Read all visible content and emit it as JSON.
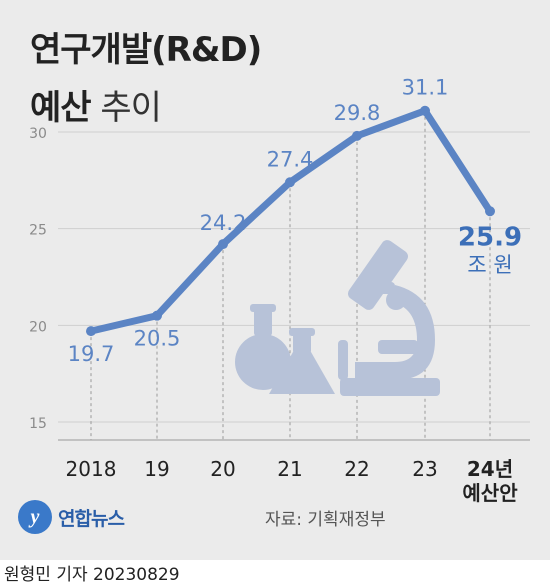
{
  "title_line1": "연구개발(R&D)",
  "title_line2_bold": "예산",
  "title_line2_light": "추이",
  "chart_data": {
    "type": "line",
    "categories": [
      "2018",
      "19",
      "20",
      "21",
      "22",
      "23",
      "24년\n예산안"
    ],
    "values": [
      19.7,
      20.5,
      24.2,
      27.4,
      29.8,
      31.1,
      25.9
    ],
    "value_labels": [
      "19.7",
      "20.5",
      "24.2",
      "27.4",
      "29.8",
      "31.1",
      "25.9"
    ],
    "unit": "조 원",
    "y_ticks": [
      "30",
      "25",
      "20",
      "15"
    ],
    "y_tick_values": [
      30,
      25,
      20,
      15
    ],
    "ylim": [
      15,
      30
    ],
    "grid": true,
    "line_color": "#5b84c4",
    "highlight_color": "#3c6fb8"
  },
  "logo_mark": "y",
  "logo_text": "연합뉴스",
  "source": "자료: 기획재정부",
  "footer": "원형민 기자  20230829"
}
